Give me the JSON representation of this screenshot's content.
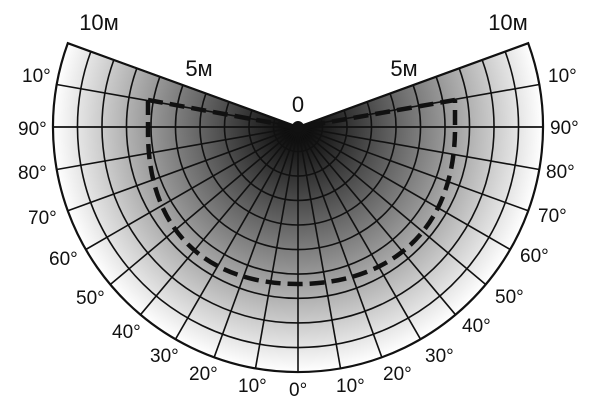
{
  "diagram": {
    "center_label": "0",
    "distance_labels": {
      "outer_left": "10м",
      "outer_right": "10м",
      "mid_left": "5м",
      "mid_right": "5м"
    },
    "left_angle_labels": [
      "10°",
      "90°",
      "80°",
      "70°",
      "60°",
      "50°",
      "40°",
      "30°",
      "20°",
      "10°"
    ],
    "bottom_angle_label": "0°",
    "right_angle_labels": [
      "10°",
      "20°",
      "30°",
      "40°",
      "50°",
      "60°",
      "70°",
      "80°",
      "90°",
      "10°"
    ],
    "colors": {
      "ink": "#111111",
      "shade_dark": "#000000",
      "shade_light": "#ffffff"
    }
  }
}
